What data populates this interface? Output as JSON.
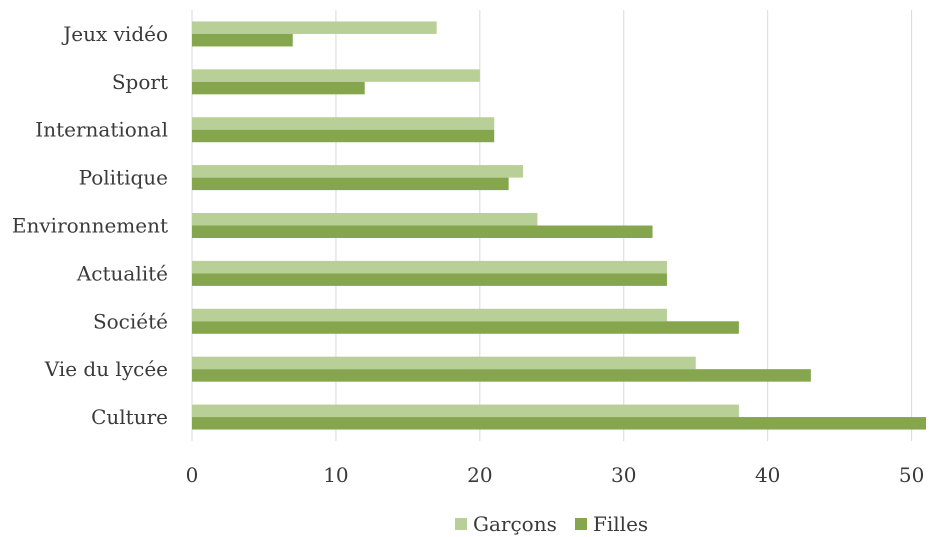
{
  "chart_data": {
    "type": "bar",
    "orientation": "horizontal",
    "categories": [
      "Jeux vidéo",
      "Sport",
      "International",
      "Politique",
      "Environnement",
      "Actualité",
      "Société",
      "Vie du lycée",
      "Culture"
    ],
    "series": [
      {
        "name": "Garçons",
        "color": "#b8cf98",
        "values": [
          17,
          20,
          21,
          23,
          24,
          33,
          33,
          35,
          38
        ]
      },
      {
        "name": "Filles",
        "color": "#86a64e",
        "values": [
          7,
          12,
          21,
          22,
          32,
          33,
          38,
          43,
          51
        ]
      }
    ],
    "xticks": [
      "0",
      "10",
      "20",
      "30",
      "40",
      "50"
    ],
    "xlim": [
      0,
      51
    ],
    "grid": true,
    "legend": "bottom-center"
  }
}
